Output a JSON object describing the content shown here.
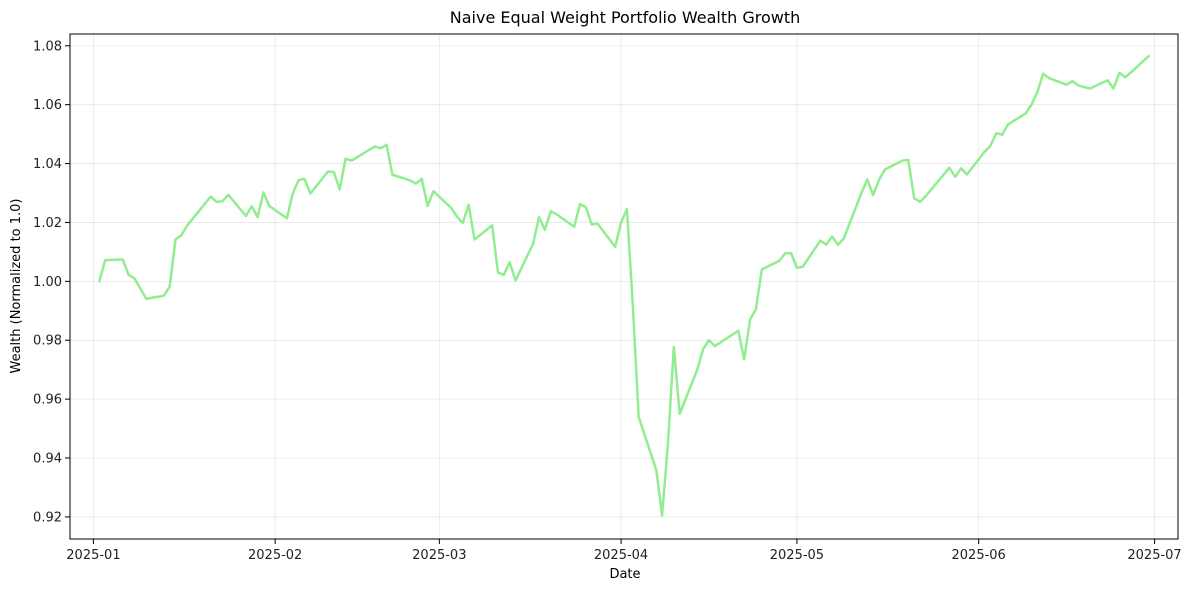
{
  "chart_data": {
    "type": "line",
    "title": "Naive Equal Weight Portfolio Wealth Growth",
    "xlabel": "Date",
    "ylabel": "Wealth (Normalized to 1.0)",
    "x_axis": "date",
    "xlim": [
      "2024-12-28",
      "2025-07-05"
    ],
    "ylim": [
      0.9125,
      1.084
    ],
    "x_ticks": [
      "2025-01-01",
      "2025-02-01",
      "2025-03-01",
      "2025-04-01",
      "2025-05-01",
      "2025-06-01",
      "2025-07-01"
    ],
    "x_tick_labels": [
      "2025-01",
      "2025-02",
      "2025-03",
      "2025-04",
      "2025-05",
      "2025-06",
      "2025-07"
    ],
    "y_ticks": [
      0.92,
      0.94,
      0.96,
      0.98,
      1.0,
      1.02,
      1.04,
      1.06,
      1.08
    ],
    "y_tick_labels": [
      "0.92",
      "0.94",
      "0.96",
      "0.98",
      "1.00",
      "1.02",
      "1.04",
      "1.06",
      "1.08"
    ],
    "grid": true,
    "legend": "none",
    "series": [
      {
        "color": "#90ee90",
        "x": [
          "2025-01-02",
          "2025-01-03",
          "2025-01-06",
          "2025-01-07",
          "2025-01-08",
          "2025-01-10",
          "2025-01-13",
          "2025-01-14",
          "2025-01-15",
          "2025-01-16",
          "2025-01-17",
          "2025-01-21",
          "2025-01-22",
          "2025-01-23",
          "2025-01-24",
          "2025-01-27",
          "2025-01-28",
          "2025-01-29",
          "2025-01-30",
          "2025-01-31",
          "2025-02-03",
          "2025-02-04",
          "2025-02-05",
          "2025-02-06",
          "2025-02-07",
          "2025-02-10",
          "2025-02-11",
          "2025-02-12",
          "2025-02-13",
          "2025-02-14",
          "2025-02-18",
          "2025-02-19",
          "2025-02-20",
          "2025-02-21",
          "2025-02-24",
          "2025-02-25",
          "2025-02-26",
          "2025-02-27",
          "2025-02-28",
          "2025-03-03",
          "2025-03-04",
          "2025-03-05",
          "2025-03-06",
          "2025-03-07",
          "2025-03-10",
          "2025-03-11",
          "2025-03-12",
          "2025-03-13",
          "2025-03-14",
          "2025-03-17",
          "2025-03-18",
          "2025-03-19",
          "2025-03-20",
          "2025-03-21",
          "2025-03-24",
          "2025-03-25",
          "2025-03-26",
          "2025-03-27",
          "2025-03-28",
          "2025-03-31",
          "2025-04-01",
          "2025-04-02",
          "2025-04-03",
          "2025-04-04",
          "2025-04-07",
          "2025-04-08",
          "2025-04-09",
          "2025-04-10",
          "2025-04-11",
          "2025-04-14",
          "2025-04-15",
          "2025-04-16",
          "2025-04-17",
          "2025-04-21",
          "2025-04-22",
          "2025-04-23",
          "2025-04-24",
          "2025-04-25",
          "2025-04-28",
          "2025-04-29",
          "2025-04-30",
          "2025-05-01",
          "2025-05-02",
          "2025-05-05",
          "2025-05-06",
          "2025-05-07",
          "2025-05-08",
          "2025-05-09",
          "2025-05-12",
          "2025-05-13",
          "2025-05-14",
          "2025-05-15",
          "2025-05-16",
          "2025-05-19",
          "2025-05-20",
          "2025-05-21",
          "2025-05-22",
          "2025-05-23",
          "2025-05-27",
          "2025-05-28",
          "2025-05-29",
          "2025-05-30",
          "2025-06-02",
          "2025-06-03",
          "2025-06-04",
          "2025-06-05",
          "2025-06-06",
          "2025-06-09",
          "2025-06-10",
          "2025-06-11",
          "2025-06-12",
          "2025-06-13",
          "2025-06-16",
          "2025-06-17",
          "2025-06-18",
          "2025-06-20",
          "2025-06-23",
          "2025-06-24",
          "2025-06-25",
          "2025-06-26",
          "2025-06-27",
          "2025-06-30"
        ],
        "y": [
          1.0,
          1.0072,
          1.0074,
          1.0022,
          1.001,
          0.9941,
          0.9951,
          0.9982,
          1.0143,
          1.0156,
          1.019,
          1.0288,
          1.027,
          1.0272,
          1.0294,
          1.0222,
          1.0255,
          1.0218,
          1.0302,
          1.0256,
          1.0214,
          1.0298,
          1.0344,
          1.0348,
          1.0298,
          1.0373,
          1.0371,
          1.0312,
          1.0416,
          1.041,
          1.0458,
          1.0452,
          1.0464,
          1.0362,
          1.0343,
          1.0332,
          1.0348,
          1.0256,
          1.0306,
          1.025,
          1.022,
          1.0198,
          1.026,
          1.0142,
          1.019,
          1.003,
          1.0022,
          1.0065,
          1.0003,
          1.0128,
          1.0218,
          1.0175,
          1.0238,
          1.0228,
          1.0185,
          1.0262,
          1.0252,
          1.0193,
          1.0196,
          1.0117,
          1.02,
          1.0245,
          0.992,
          0.954,
          0.936,
          0.9205,
          0.945,
          0.9777,
          0.955,
          0.97,
          0.977,
          0.98,
          0.978,
          0.9832,
          0.9735,
          0.987,
          0.9905,
          1.004,
          1.007,
          1.0095,
          1.0096,
          1.0046,
          1.005,
          1.0138,
          1.0125,
          1.0152,
          1.0124,
          1.0146,
          1.03,
          1.0346,
          1.0293,
          1.0345,
          1.038,
          1.041,
          1.0412,
          1.0282,
          1.027,
          1.029,
          1.0386,
          1.0355,
          1.0384,
          1.0363,
          1.044,
          1.046,
          1.0503,
          1.0498,
          1.0533,
          1.057,
          1.06,
          1.0642,
          1.0705,
          1.069,
          1.0668,
          1.068,
          1.0665,
          1.0655,
          1.0683,
          1.0655,
          1.0708,
          1.0693,
          1.071,
          1.0765
        ]
      }
    ]
  }
}
